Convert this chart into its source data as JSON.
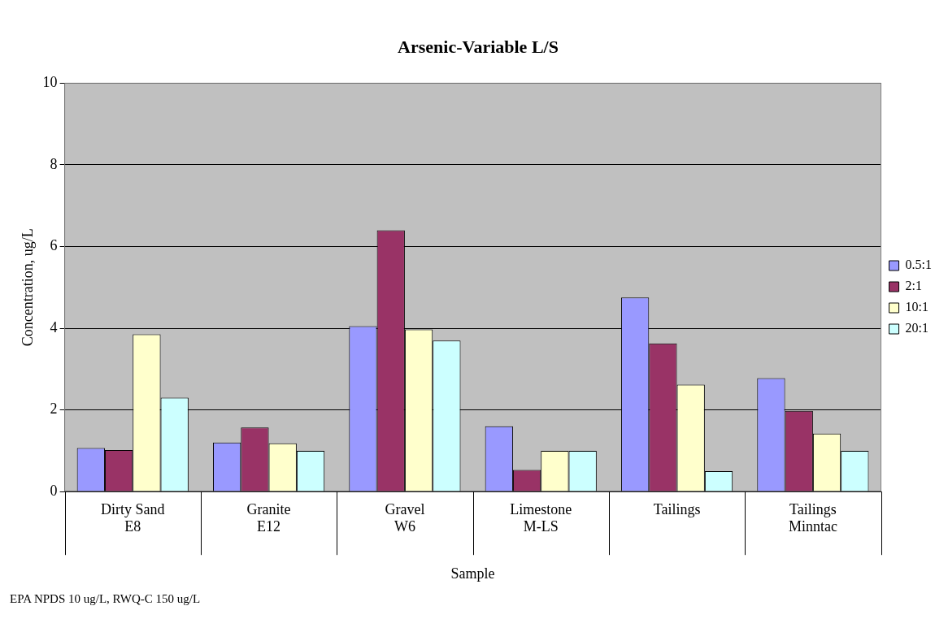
{
  "chart_data": {
    "type": "bar",
    "title": "Arsenic-Variable L/S",
    "xlabel": "Sample",
    "ylabel": "Concentration, ug/L",
    "categories": [
      "Dirty Sand\nE8",
      "Granite\nE12",
      "Gravel\nW6",
      "Limestone\nM-LS",
      "Tailings",
      "Tailings\nMinntac"
    ],
    "series": [
      {
        "name": "0.5:1",
        "color": "#9999ff",
        "values": [
          1.07,
          1.2,
          4.05,
          1.6,
          4.75,
          2.78
        ]
      },
      {
        "name": "2:1",
        "color": "#993366",
        "values": [
          1.02,
          1.57,
          6.4,
          0.53,
          3.63,
          1.98
        ]
      },
      {
        "name": "10:1",
        "color": "#ffffcc",
        "values": [
          3.85,
          1.18,
          3.97,
          1.0,
          2.62,
          1.42
        ]
      },
      {
        "name": "20:1",
        "color": "#ccffff",
        "values": [
          2.3,
          1.0,
          3.7,
          1.0,
          0.5,
          1.0
        ]
      }
    ],
    "ylim": [
      0,
      10
    ],
    "yticks": [
      0,
      2,
      4,
      6,
      8,
      10
    ],
    "grid": "y",
    "legend": "right",
    "annotations": [
      "EPA NPDS 10 ug/L, RWQ-C 150 ug/L"
    ]
  }
}
